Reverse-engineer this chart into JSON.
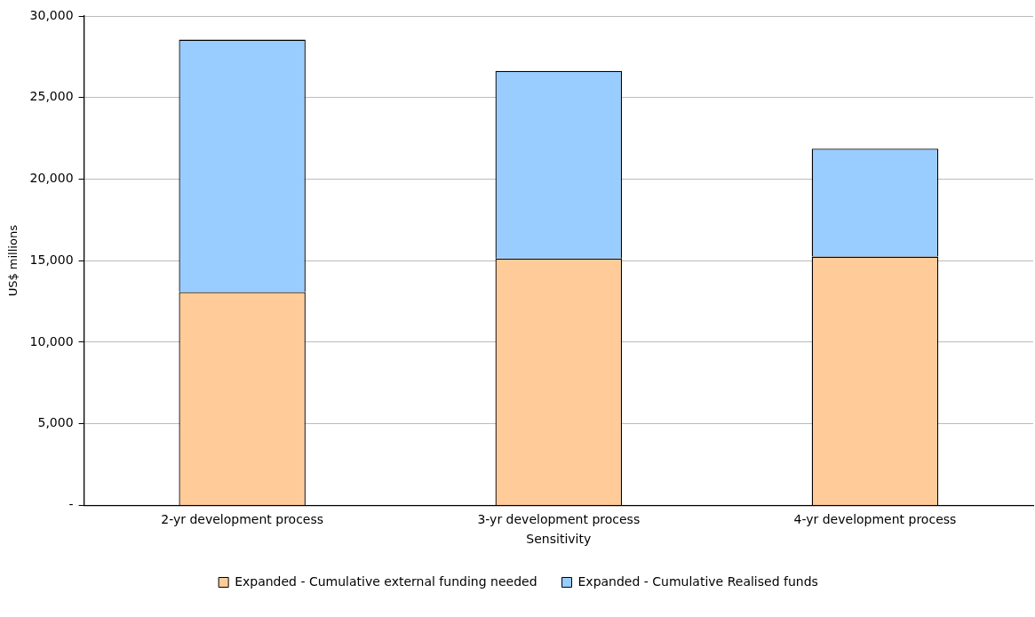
{
  "chart_data": {
    "type": "bar",
    "stacked": true,
    "xlabel": "Sensitivity",
    "ylabel": "US$ millions",
    "categories": [
      "2-yr development process",
      "3-yr development process",
      "4-yr development process"
    ],
    "series": [
      {
        "name": "Expanded - Cumulative external funding needed",
        "color": "#ffcc99",
        "values": [
          13080,
          15140,
          15250
        ]
      },
      {
        "name": "Expanded - Cumulative Realised funds",
        "color": "#99ccff",
        "values": [
          15470,
          11500,
          6620
        ]
      }
    ],
    "ylim": [
      0,
      30000
    ],
    "yticks": [
      {
        "value": 0,
        "label": "-"
      },
      {
        "value": 5000,
        "label": "5,000"
      },
      {
        "value": 10000,
        "label": "10,000"
      },
      {
        "value": 15000,
        "label": "15,000"
      },
      {
        "value": 20000,
        "label": "20,000"
      },
      {
        "value": 25000,
        "label": "25,000"
      },
      {
        "value": 30000,
        "label": "30,000"
      }
    ],
    "grid": "y",
    "legend": "bottom"
  }
}
